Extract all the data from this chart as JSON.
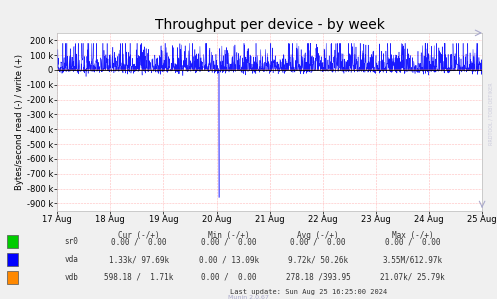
{
  "title": "Throughput per device - by week",
  "ylabel": "Bytes/second read (-) / write (+)",
  "xlabel_ticks": [
    "17 Aug",
    "18 Aug",
    "19 Aug",
    "20 Aug",
    "21 Aug",
    "22 Aug",
    "23 Aug",
    "24 Aug",
    "25 Aug"
  ],
  "ylim": [
    -950000,
    250000
  ],
  "bg_color": "#f0f0f0",
  "plot_bg_color": "#ffffff",
  "watermark_text": "RRDTOOL / TOBI OETIKER",
  "munin_text": "Munin 2.0.67",
  "legend_colors": [
    "#00cc00",
    "#0000ff",
    "#ff8800"
  ],
  "legend_names": [
    "sr0",
    "vda",
    "vdb"
  ],
  "legend_rows": [
    [
      "0.00 /  0.00",
      "0.00 /  0.00",
      "0.00 /  0.00",
      "0.00 /  0.00"
    ],
    [
      "1.33k/ 97.69k",
      "0.00 / 13.09k",
      "9.72k/ 50.26k",
      "3.55M/612.97k"
    ],
    [
      "598.18 /  1.71k",
      "0.00 /  0.00",
      "278.18 /393.95",
      "21.07k/ 25.79k"
    ]
  ],
  "last_update": "Last update: Sun Aug 25 16:25:00 2024",
  "title_fontsize": 10,
  "ylabel_fontsize": 6,
  "tick_fontsize": 6,
  "legend_fontsize": 5.5
}
